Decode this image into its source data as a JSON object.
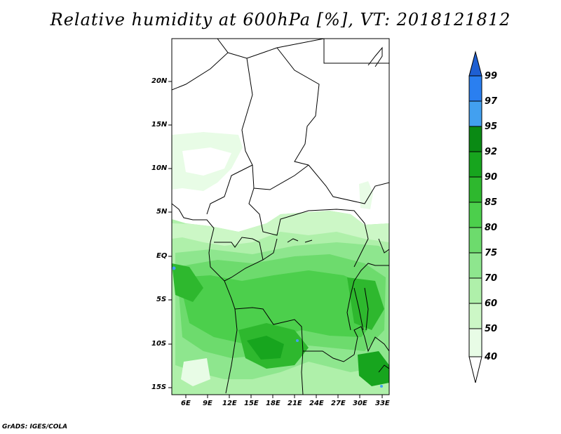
{
  "title": "Relative humidity at 600hPa [%], VT: 2018121812",
  "footer": "GrADS: IGES/COLA",
  "lat_ticks": [
    "20N",
    "15N",
    "10N",
    "5N",
    "EQ",
    "5S",
    "10S",
    "15S"
  ],
  "lon_ticks": [
    "6E",
    "9E",
    "12E",
    "15E",
    "18E",
    "21E",
    "24E",
    "27E",
    "30E",
    "33E"
  ],
  "colorbar": {
    "levels": [
      "99",
      "97",
      "95",
      "92",
      "90",
      "85",
      "80",
      "75",
      "70",
      "60",
      "50",
      "40"
    ],
    "colors": [
      "#1e5fd2",
      "#2a7ff0",
      "#42a0f0",
      "#0a8a14",
      "#17a51e",
      "#2eb82e",
      "#4ccf4c",
      "#6ddb6d",
      "#8ee68e",
      "#aff0aa",
      "#ccf7c6",
      "#e8fce6"
    ]
  },
  "map": {
    "variable": "Relative humidity",
    "level": "600hPa",
    "units": "%",
    "valid_time": "2018121812",
    "lon_range": [
      4,
      34
    ],
    "lat_range": [
      -16,
      25
    ]
  }
}
